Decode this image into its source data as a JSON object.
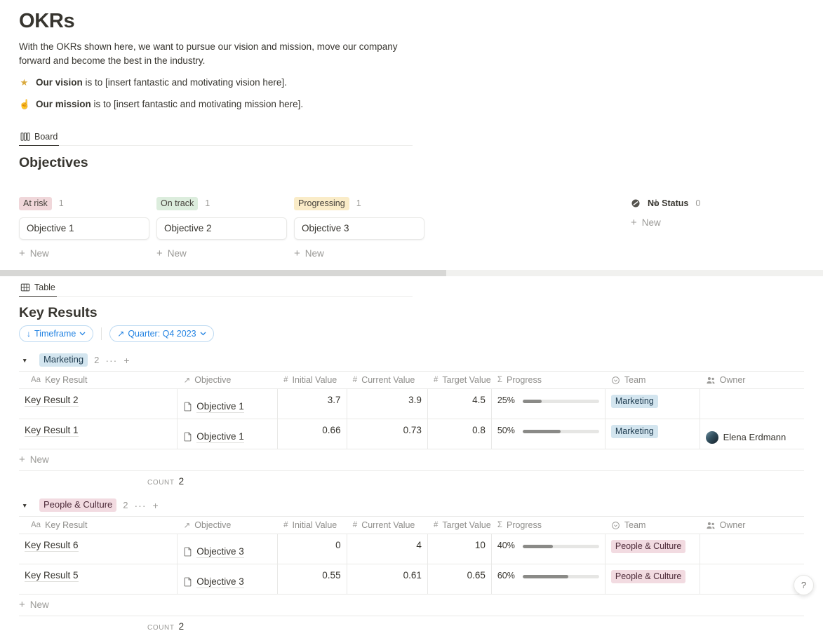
{
  "page": {
    "title": "OKRs",
    "intro_line": "With the OKRs shown here, we want to pursue our vision and mission, move our company forward and become the best in the industry.",
    "vision": {
      "emoji": "★",
      "lead": "Our vision",
      "text": " is to [insert fantastic and motivating vision here]."
    },
    "mission": {
      "emoji": "☝",
      "lead": "Our mission",
      "text": " is to [insert fantastic and motivating mission here]."
    }
  },
  "board": {
    "tab": "Board",
    "title": "Objectives",
    "new_label": "New",
    "columns": [
      {
        "status": "At risk",
        "count": "1",
        "card": "Objective 1"
      },
      {
        "status": "On track",
        "count": "1",
        "card": "Objective 2"
      },
      {
        "status": "Progressing",
        "count": "1",
        "card": "Objective 3"
      },
      {
        "status": "No Status",
        "count": "0"
      }
    ]
  },
  "table": {
    "tab": "Table",
    "title": "Key Results",
    "new_label": "New",
    "filters": [
      {
        "icon": "↓",
        "label": "Timeframe"
      },
      {
        "icon": "↗",
        "label": "Quarter: Q4 2023"
      }
    ],
    "headers": [
      {
        "icon": "Aa",
        "label": "Key Result"
      },
      {
        "icon": "↗",
        "label": "Objective"
      },
      {
        "icon": "#",
        "label": "Initial Value"
      },
      {
        "icon": "#",
        "label": "Current Value"
      },
      {
        "icon": "#",
        "label": "Target Value"
      },
      {
        "icon": "Σ",
        "label": "Progress"
      },
      {
        "icon": "",
        "label": "Team"
      },
      {
        "icon": "",
        "label": "Owner"
      }
    ],
    "groups": [
      {
        "name": "Marketing",
        "count": "2",
        "rows": [
          {
            "key_result": "Key Result 2",
            "objective": "Objective 1",
            "initial": "3.7",
            "current": "3.9",
            "target": "4.5",
            "progress_label": "25%",
            "progress_pct": 25,
            "team": "Marketing",
            "owner": ""
          },
          {
            "key_result": "Key Result 1",
            "objective": "Objective 1",
            "initial": "0.66",
            "current": "0.73",
            "target": "0.8",
            "progress_label": "50%",
            "progress_pct": 50,
            "team": "Marketing",
            "owner": "Elena Erdmann"
          }
        ],
        "footer": {
          "label": "COUNT",
          "value": "2"
        }
      },
      {
        "name": "People & Culture",
        "count": "2",
        "rows": [
          {
            "key_result": "Key Result 6",
            "objective": "Objective 3",
            "initial": "0",
            "current": "4",
            "target": "10",
            "progress_label": "40%",
            "progress_pct": 40,
            "team": "People & Culture",
            "owner": ""
          },
          {
            "key_result": "Key Result 5",
            "objective": "Objective 3",
            "initial": "0.55",
            "current": "0.61",
            "target": "0.65",
            "progress_label": "60%",
            "progress_pct": 60,
            "team": "People & Culture",
            "owner": ""
          }
        ],
        "footer": {
          "label": "COUNT",
          "value": "2"
        }
      }
    ]
  },
  "glyphs": {
    "plus": "+",
    "dots": "···",
    "triangle": "▼"
  },
  "help": {
    "label": "?"
  },
  "colors": {
    "text": "#37352f",
    "muted": "#9b9a97",
    "accent_blue": "#2383e2",
    "badge_at_risk": "#f0d7da",
    "badge_on_track": "#dceddd",
    "badge_progressing": "#faecc8",
    "badge_marketing": "#d3e5ef",
    "badge_people_culture": "#f2dbe1",
    "progress_fill": "#8a8a87",
    "progress_track": "#e6e6e4",
    "table_border": "#e9e9e7"
  }
}
